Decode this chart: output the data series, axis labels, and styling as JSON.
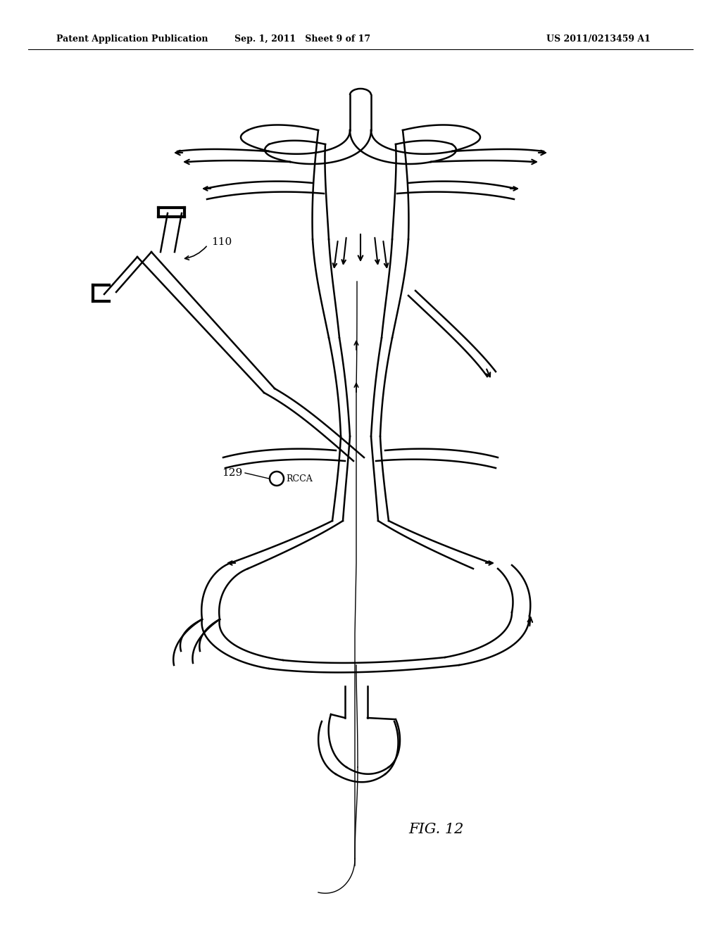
{
  "title_left": "Patent Application Publication",
  "title_center": "Sep. 1, 2011   Sheet 9 of 17",
  "title_right": "US 2011/0213459 A1",
  "fig_label": "FIG. 12",
  "label_110": "110",
  "label_129": "129",
  "label_rcca": "RCCA",
  "bg_color": "#ffffff",
  "line_color": "#000000",
  "line_width": 1.8,
  "thick_line": 2.5
}
